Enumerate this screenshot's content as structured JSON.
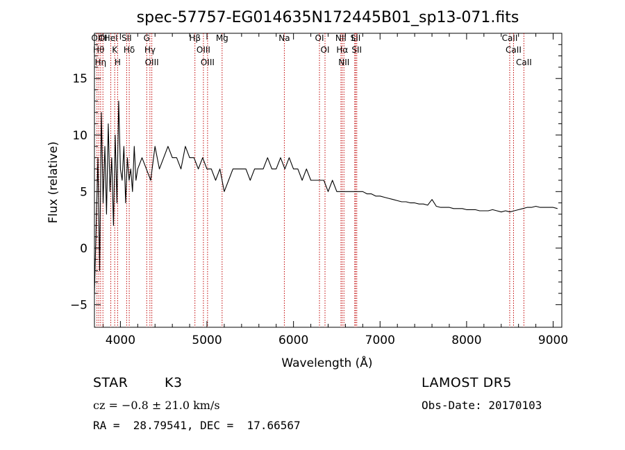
{
  "chart_data": {
    "type": "line",
    "title": "spec-57757-EG014635N172445B01_sp13-071.fits",
    "xlabel": "Wavelength (Å)",
    "ylabel": "Flux (relative)",
    "xlim": [
      3700,
      9100
    ],
    "ylim": [
      -7,
      19
    ],
    "xticks": [
      4000,
      5000,
      6000,
      7000,
      8000,
      9000
    ],
    "yticks": [
      -5,
      0,
      5,
      10,
      15
    ],
    "grid": false,
    "series": [
      {
        "x": [
          3700,
          3720,
          3740,
          3760,
          3780,
          3800,
          3820,
          3840,
          3860,
          3880,
          3900,
          3920,
          3940,
          3960,
          3980,
          4000,
          4020,
          4040,
          4060,
          4080,
          4100,
          4120,
          4140,
          4160,
          4180,
          4200,
          4250,
          4300,
          4350,
          4400,
          4450,
          4500,
          4550,
          4600,
          4650,
          4700,
          4750,
          4800,
          4850,
          4900,
          4950,
          5000,
          5050,
          5100,
          5150,
          5200,
          5250,
          5300,
          5350,
          5400,
          5450,
          5500,
          5550,
          5600,
          5650,
          5700,
          5750,
          5800,
          5850,
          5900,
          5950,
          6000,
          6050,
          6100,
          6150,
          6200,
          6250,
          6300,
          6350,
          6400,
          6450,
          6500,
          6550,
          6600,
          6650,
          6700,
          6750,
          6800,
          6850,
          6900,
          6950,
          7000,
          7050,
          7100,
          7150,
          7200,
          7250,
          7300,
          7350,
          7400,
          7450,
          7500,
          7550,
          7600,
          7650,
          7700,
          7750,
          7800,
          7850,
          7900,
          7950,
          8000,
          8050,
          8100,
          8150,
          8200,
          8250,
          8300,
          8350,
          8400,
          8450,
          8500,
          8550,
          8600,
          8650,
          8700,
          8750,
          8800,
          8850,
          8900,
          8950,
          9000,
          9050
        ],
        "y": [
          -4,
          2,
          8,
          -2,
          12,
          4,
          9,
          3,
          11,
          5,
          8,
          2,
          10,
          4,
          13,
          7,
          6,
          9,
          4,
          8,
          6,
          7,
          5,
          9,
          6,
          7,
          8,
          7,
          6,
          9,
          7,
          8,
          9,
          8,
          8,
          7,
          9,
          8,
          8,
          7,
          8,
          7,
          7,
          6,
          7,
          5,
          6,
          7,
          7,
          7,
          7,
          6,
          7,
          7,
          7,
          8,
          7,
          7,
          8,
          7,
          8,
          7,
          7,
          6,
          7,
          6,
          6,
          6,
          6,
          5,
          6,
          5,
          5,
          5,
          5,
          5,
          5,
          5,
          4.8,
          4.8,
          4.6,
          4.6,
          4.5,
          4.4,
          4.3,
          4.2,
          4.1,
          4.1,
          4.0,
          4.0,
          3.9,
          3.9,
          3.8,
          4.3,
          3.7,
          3.6,
          3.6,
          3.6,
          3.5,
          3.5,
          3.5,
          3.4,
          3.4,
          3.4,
          3.3,
          3.3,
          3.3,
          3.4,
          3.3,
          3.2,
          3.3,
          3.2,
          3.3,
          3.4,
          3.5,
          3.6,
          3.6,
          3.7,
          3.6,
          3.6,
          3.6,
          3.6,
          3.5
        ]
      }
    ],
    "lines": [
      {
        "x": 3729,
        "label": "OII"
      },
      {
        "x": 3750,
        "label": "Hθ"
      },
      {
        "x": 3771,
        "label": "Hη"
      },
      {
        "x": 3798,
        "label": "OI"
      },
      {
        "x": 3889,
        "label": "HeI"
      },
      {
        "x": 3934,
        "label": "K"
      },
      {
        "x": 3968,
        "label": "H"
      },
      {
        "x": 4072,
        "label": "SII"
      },
      {
        "x": 4102,
        "label": "Hδ"
      },
      {
        "x": 4304,
        "label": "G"
      },
      {
        "x": 4341,
        "label": "Hγ"
      },
      {
        "x": 4363,
        "label": "OIII"
      },
      {
        "x": 4861,
        "label": "Hβ"
      },
      {
        "x": 4959,
        "label": "OIII"
      },
      {
        "x": 5007,
        "label": "OIII"
      },
      {
        "x": 5175,
        "label": "Mg"
      },
      {
        "x": 5894,
        "label": "Na"
      },
      {
        "x": 6300,
        "label": "OI"
      },
      {
        "x": 6364,
        "label": "OI"
      },
      {
        "x": 6548,
        "label": "NII"
      },
      {
        "x": 6563,
        "label": "Hα"
      },
      {
        "x": 6583,
        "label": "NII"
      },
      {
        "x": 6708,
        "label": "Li"
      },
      {
        "x": 6716,
        "label": "SII"
      },
      {
        "x": 6731,
        "label": "SII"
      },
      {
        "x": 8498,
        "label": "CaII"
      },
      {
        "x": 8542,
        "label": "CaII"
      },
      {
        "x": 8662,
        "label": "CaII"
      }
    ]
  },
  "info": {
    "class": "STAR",
    "subclass": "K3",
    "survey": "LAMOST DR5",
    "cz": "cz = −0.8 ± 21.0 km/s",
    "obs_date": "Obs-Date: 20170103",
    "coords": "RA =  28.79541, DEC =  17.66567"
  },
  "colors": {
    "spectrum": "#000000",
    "line_marker": "#c00000",
    "axes": "#000000"
  }
}
